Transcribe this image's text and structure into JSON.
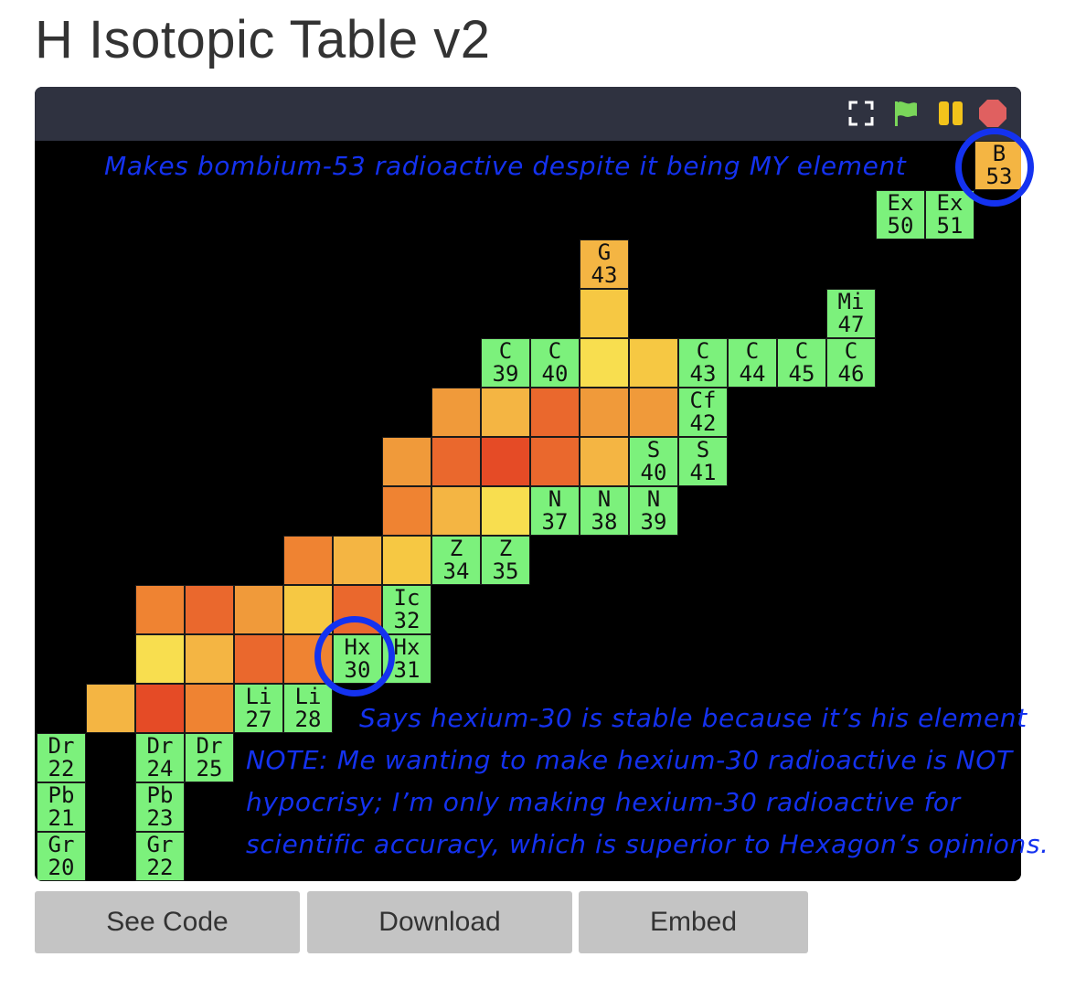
{
  "title": "H Isotopic Table v2",
  "controls": [
    {
      "name": "fullscreen-icon"
    },
    {
      "name": "green-flag-icon",
      "color": "#7ad65a"
    },
    {
      "name": "pause-icon",
      "color": "#f2c31b"
    },
    {
      "name": "stop-icon",
      "color": "#e06060"
    }
  ],
  "colors": {
    "stable": "#7cf17c",
    "palette": {
      "Y": "#f8de4f",
      "Yo": "#f6c843",
      "O": "#f4b543",
      "Od": "#f09a3a",
      "Rl": "#ef8332",
      "R": "#ea682d",
      "Rd": "#e54b26"
    },
    "annotation": "#1432f0"
  },
  "cells": [
    {
      "col": 19,
      "row": 0,
      "sym": "B",
      "mass": "53",
      "fill": "#f4b543"
    },
    {
      "col": 17,
      "row": 1,
      "sym": "Ex",
      "mass": "50",
      "fill": "stable"
    },
    {
      "col": 18,
      "row": 1,
      "sym": "Ex",
      "mass": "51",
      "fill": "stable"
    },
    {
      "col": 11,
      "row": 2,
      "sym": "G",
      "mass": "43",
      "fill": "#f4b543"
    },
    {
      "col": 11,
      "row": 3,
      "fill": "#f6c843"
    },
    {
      "col": 16,
      "row": 3,
      "sym": "Mi",
      "mass": "47",
      "fill": "stable"
    },
    {
      "col": 9,
      "row": 4,
      "sym": "C",
      "mass": "39",
      "fill": "stable"
    },
    {
      "col": 10,
      "row": 4,
      "sym": "C",
      "mass": "40",
      "fill": "stable"
    },
    {
      "col": 11,
      "row": 4,
      "fill": "#f8de4f"
    },
    {
      "col": 12,
      "row": 4,
      "fill": "#f6c843"
    },
    {
      "col": 13,
      "row": 4,
      "sym": "C",
      "mass": "43",
      "fill": "stable"
    },
    {
      "col": 14,
      "row": 4,
      "sym": "C",
      "mass": "44",
      "fill": "stable"
    },
    {
      "col": 15,
      "row": 4,
      "sym": "C",
      "mass": "45",
      "fill": "stable"
    },
    {
      "col": 16,
      "row": 4,
      "sym": "C",
      "mass": "46",
      "fill": "stable"
    },
    {
      "col": 8,
      "row": 5,
      "fill": "#f09a3a"
    },
    {
      "col": 9,
      "row": 5,
      "fill": "#f4b543"
    },
    {
      "col": 10,
      "row": 5,
      "fill": "#ea682d"
    },
    {
      "col": 11,
      "row": 5,
      "fill": "#f09a3a"
    },
    {
      "col": 12,
      "row": 5,
      "fill": "#f09a3a"
    },
    {
      "col": 13,
      "row": 5,
      "sym": "Cf",
      "mass": "42",
      "fill": "stable"
    },
    {
      "col": 7,
      "row": 6,
      "fill": "#f09a3a"
    },
    {
      "col": 8,
      "row": 6,
      "fill": "#ea682d"
    },
    {
      "col": 9,
      "row": 6,
      "fill": "#e54b26"
    },
    {
      "col": 10,
      "row": 6,
      "fill": "#ea682d"
    },
    {
      "col": 11,
      "row": 6,
      "fill": "#f4b543"
    },
    {
      "col": 12,
      "row": 6,
      "sym": "S",
      "mass": "40",
      "fill": "stable"
    },
    {
      "col": 13,
      "row": 6,
      "sym": "S",
      "mass": "41",
      "fill": "stable"
    },
    {
      "col": 7,
      "row": 7,
      "fill": "#ef8332"
    },
    {
      "col": 8,
      "row": 7,
      "fill": "#f4b543"
    },
    {
      "col": 9,
      "row": 7,
      "fill": "#f8de4f"
    },
    {
      "col": 10,
      "row": 7,
      "sym": "N",
      "mass": "37",
      "fill": "stable"
    },
    {
      "col": 11,
      "row": 7,
      "sym": "N",
      "mass": "38",
      "fill": "stable"
    },
    {
      "col": 12,
      "row": 7,
      "sym": "N",
      "mass": "39",
      "fill": "stable"
    },
    {
      "col": 5,
      "row": 8,
      "fill": "#ef8332"
    },
    {
      "col": 6,
      "row": 8,
      "fill": "#f4b543"
    },
    {
      "col": 7,
      "row": 8,
      "fill": "#f6c843"
    },
    {
      "col": 8,
      "row": 8,
      "sym": "Z",
      "mass": "34",
      "fill": "stable"
    },
    {
      "col": 9,
      "row": 8,
      "sym": "Z",
      "mass": "35",
      "fill": "stable"
    },
    {
      "col": 2,
      "row": 9,
      "fill": "#ef8332"
    },
    {
      "col": 3,
      "row": 9,
      "fill": "#ea682d"
    },
    {
      "col": 4,
      "row": 9,
      "fill": "#f09a3a"
    },
    {
      "col": 5,
      "row": 9,
      "fill": "#f6c843"
    },
    {
      "col": 6,
      "row": 9,
      "fill": "#ea682d"
    },
    {
      "col": 7,
      "row": 9,
      "sym": "Ic",
      "mass": "32",
      "fill": "stable"
    },
    {
      "col": 2,
      "row": 10,
      "fill": "#f8de4f"
    },
    {
      "col": 3,
      "row": 10,
      "fill": "#f4b543"
    },
    {
      "col": 4,
      "row": 10,
      "fill": "#ea682d"
    },
    {
      "col": 5,
      "row": 10,
      "fill": "#ef8332"
    },
    {
      "col": 6,
      "row": 10,
      "sym": "Hx",
      "mass": "30",
      "fill": "stable"
    },
    {
      "col": 7,
      "row": 10,
      "sym": "Hx",
      "mass": "31",
      "fill": "stable"
    },
    {
      "col": 1,
      "row": 11,
      "fill": "#f4b543"
    },
    {
      "col": 2,
      "row": 11,
      "fill": "#e54b26"
    },
    {
      "col": 3,
      "row": 11,
      "fill": "#ef8332"
    },
    {
      "col": 4,
      "row": 11,
      "sym": "Li",
      "mass": "27",
      "fill": "stable"
    },
    {
      "col": 5,
      "row": 11,
      "sym": "Li",
      "mass": "28",
      "fill": "stable"
    },
    {
      "col": 0,
      "row": 12,
      "sym": "Dr",
      "mass": "22",
      "fill": "stable"
    },
    {
      "col": 2,
      "row": 12,
      "sym": "Dr",
      "mass": "24",
      "fill": "stable"
    },
    {
      "col": 3,
      "row": 12,
      "sym": "Dr",
      "mass": "25",
      "fill": "stable"
    },
    {
      "col": 0,
      "row": 13,
      "sym": "Pb",
      "mass": "21",
      "fill": "stable"
    },
    {
      "col": 2,
      "row": 13,
      "sym": "Pb",
      "mass": "23",
      "fill": "stable"
    },
    {
      "col": 0,
      "row": 14,
      "sym": "Gr",
      "mass": "20",
      "fill": "stable"
    },
    {
      "col": 2,
      "row": 14,
      "sym": "Gr",
      "mass": "22",
      "fill": "stable"
    }
  ],
  "annotations": {
    "bombium": "Makes bombium-53 radioactive despite it being MY element",
    "hexium": "Says hexium-30 is stable because it’s his element",
    "note_lines": [
      "NOTE: Me wanting to make hexium-30 radioactive is NOT",
      "hypocrisy; I’m only making hexium-30 radioactive for",
      "scientific accuracy, which is superior to Hexagon’s opinions."
    ]
  },
  "buttons": {
    "see_code": "See Code",
    "download": "Download",
    "embed": "Embed"
  }
}
